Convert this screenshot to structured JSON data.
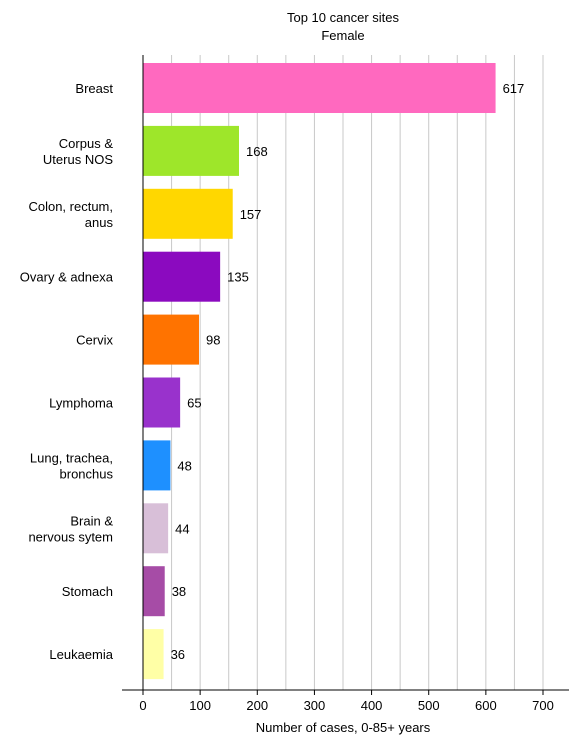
{
  "chart_data": {
    "type": "bar",
    "orientation": "horizontal",
    "title": "Top 10 cancer sites",
    "subtitle": "Female",
    "xlabel": "Number of cases, 0-85+ years",
    "ylabel": "",
    "xlim": [
      0,
      700
    ],
    "xticks": [
      "0",
      "100",
      "200",
      "300",
      "400",
      "500",
      "600",
      "700"
    ],
    "grid": "vertical",
    "categories": [
      "Breast",
      "Corpus & Uterus NOS",
      "Colon, rectum, anus",
      "Ovary & adnexa",
      "Cervix",
      "Lymphoma",
      "Lung, trachea, bronchus",
      "Brain & nervous sytem",
      "Stomach",
      "Leukaemia"
    ],
    "category_lines": [
      [
        "Breast"
      ],
      [
        "Corpus &",
        "Uterus NOS"
      ],
      [
        "Colon, rectum,",
        "anus"
      ],
      [
        "Ovary & adnexa"
      ],
      [
        "Cervix"
      ],
      [
        "Lymphoma"
      ],
      [
        "Lung, trachea,",
        "bronchus"
      ],
      [
        "Brain &",
        "nervous sytem"
      ],
      [
        "Stomach"
      ],
      [
        "Leukaemia"
      ]
    ],
    "values": [
      617,
      168,
      157,
      135,
      98,
      65,
      48,
      44,
      38,
      36
    ],
    "value_labels": [
      "617",
      "168",
      "157",
      "135",
      "98",
      "65",
      "48",
      "44",
      "38",
      "36"
    ],
    "colors": [
      "#ff69bf",
      "#9ee62a",
      "#ffd700",
      "#8b0abf",
      "#ff7300",
      "#9932cc",
      "#1e90ff",
      "#d8bfd8",
      "#a64ca6",
      "#ffffa6"
    ]
  }
}
